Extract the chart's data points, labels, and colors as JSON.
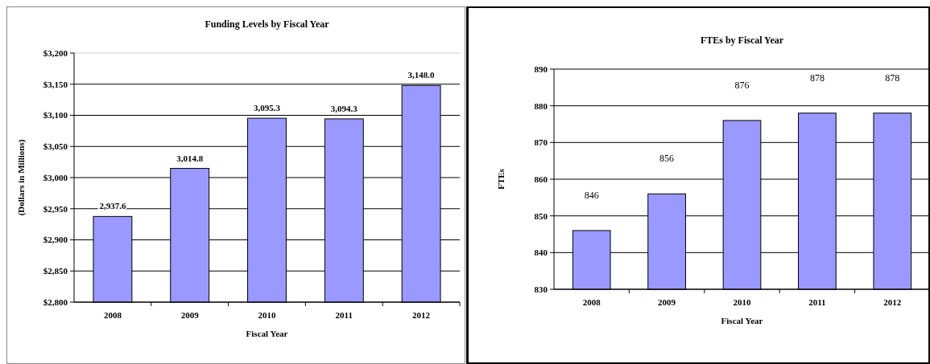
{
  "chart_data": [
    {
      "type": "bar",
      "title": "Funding Levels by Fiscal Year",
      "xlabel": "Fiscal Year",
      "ylabel": "(Dollars in Millions)",
      "categories": [
        "2008",
        "2009",
        "2010",
        "2011",
        "2012"
      ],
      "values": [
        2937.6,
        3014.8,
        3095.3,
        3094.3,
        3148.0
      ],
      "value_labels": [
        "2,937.6",
        "3,014.8",
        "3,095.3",
        "3,094.3",
        "3,148.0"
      ],
      "color": "#9999ff",
      "ylim": [
        2800,
        3200
      ],
      "yticks": [
        {
          "value": 2800,
          "label": "$2,800"
        },
        {
          "value": 2850,
          "label": "$2,850"
        },
        {
          "value": 2900,
          "label": "$2,900"
        },
        {
          "value": 2950,
          "label": "$2,950"
        },
        {
          "value": 3000,
          "label": "$3,000"
        },
        {
          "value": 3050,
          "label": "$3,050"
        },
        {
          "value": 3100,
          "label": "$3,100"
        },
        {
          "value": 3150,
          "label": "$3,150"
        },
        {
          "value": 3200,
          "label": "$3,200"
        }
      ],
      "grid": "y"
    },
    {
      "type": "bar",
      "title": "FTEs by Fiscal Year",
      "xlabel": "Fiscal Year",
      "ylabel": "FTEs",
      "categories": [
        "2008",
        "2009",
        "2010",
        "2011",
        "2012"
      ],
      "values": [
        846,
        856,
        876,
        878,
        878
      ],
      "color": "#9999ff",
      "ylim": [
        830,
        890
      ],
      "yticks": [
        830,
        840,
        850,
        860,
        870,
        880,
        890
      ],
      "grid": "y",
      "data_labels": true
    }
  ]
}
